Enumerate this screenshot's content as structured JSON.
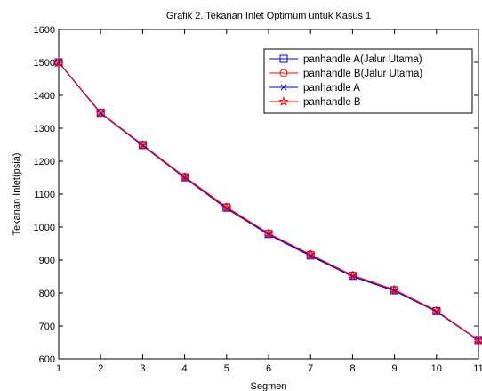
{
  "chart_data": {
    "type": "line",
    "title": "Grafik 2. Tekanan Inlet Optimum untuk Kasus 1",
    "xlabel": "Segmen",
    "ylabel": "Tekanan Inlet(psia)",
    "xlim": [
      1,
      11
    ],
    "ylim": [
      600,
      1600
    ],
    "x_ticks": [
      1,
      2,
      3,
      4,
      5,
      6,
      7,
      8,
      9,
      10,
      11
    ],
    "y_ticks": [
      600,
      700,
      800,
      900,
      1000,
      1100,
      1200,
      1300,
      1400,
      1500,
      1600
    ],
    "grid": false,
    "legend_position": "top-right",
    "x": [
      1,
      2,
      3,
      4,
      5,
      6,
      7,
      8,
      9,
      10,
      11
    ],
    "series": [
      {
        "name": "panhandle A(Jalur Utama)",
        "color": "#0000ff",
        "marker": "square",
        "values": [
          1500,
          1347,
          1249,
          1151,
          1059,
          979,
          914,
          852,
          808,
          745,
          657
        ]
      },
      {
        "name": "panhandle B(Jalur Utama)",
        "color": "#ff0000",
        "marker": "circle",
        "values": [
          1500,
          1347,
          1250,
          1153,
          1061,
          981,
          917,
          854,
          810,
          746,
          657
        ]
      },
      {
        "name": "panhandle A",
        "color": "#0000ff",
        "marker": "x",
        "values": [
          1500,
          1345,
          1247,
          1149,
          1056,
          977,
          912,
          850,
          806,
          743,
          656
        ]
      },
      {
        "name": "panhandle B",
        "color": "#ff0000",
        "marker": "star",
        "values": [
          1500,
          1346,
          1249,
          1151,
          1059,
          980,
          916,
          853,
          809,
          745,
          657
        ]
      }
    ]
  }
}
